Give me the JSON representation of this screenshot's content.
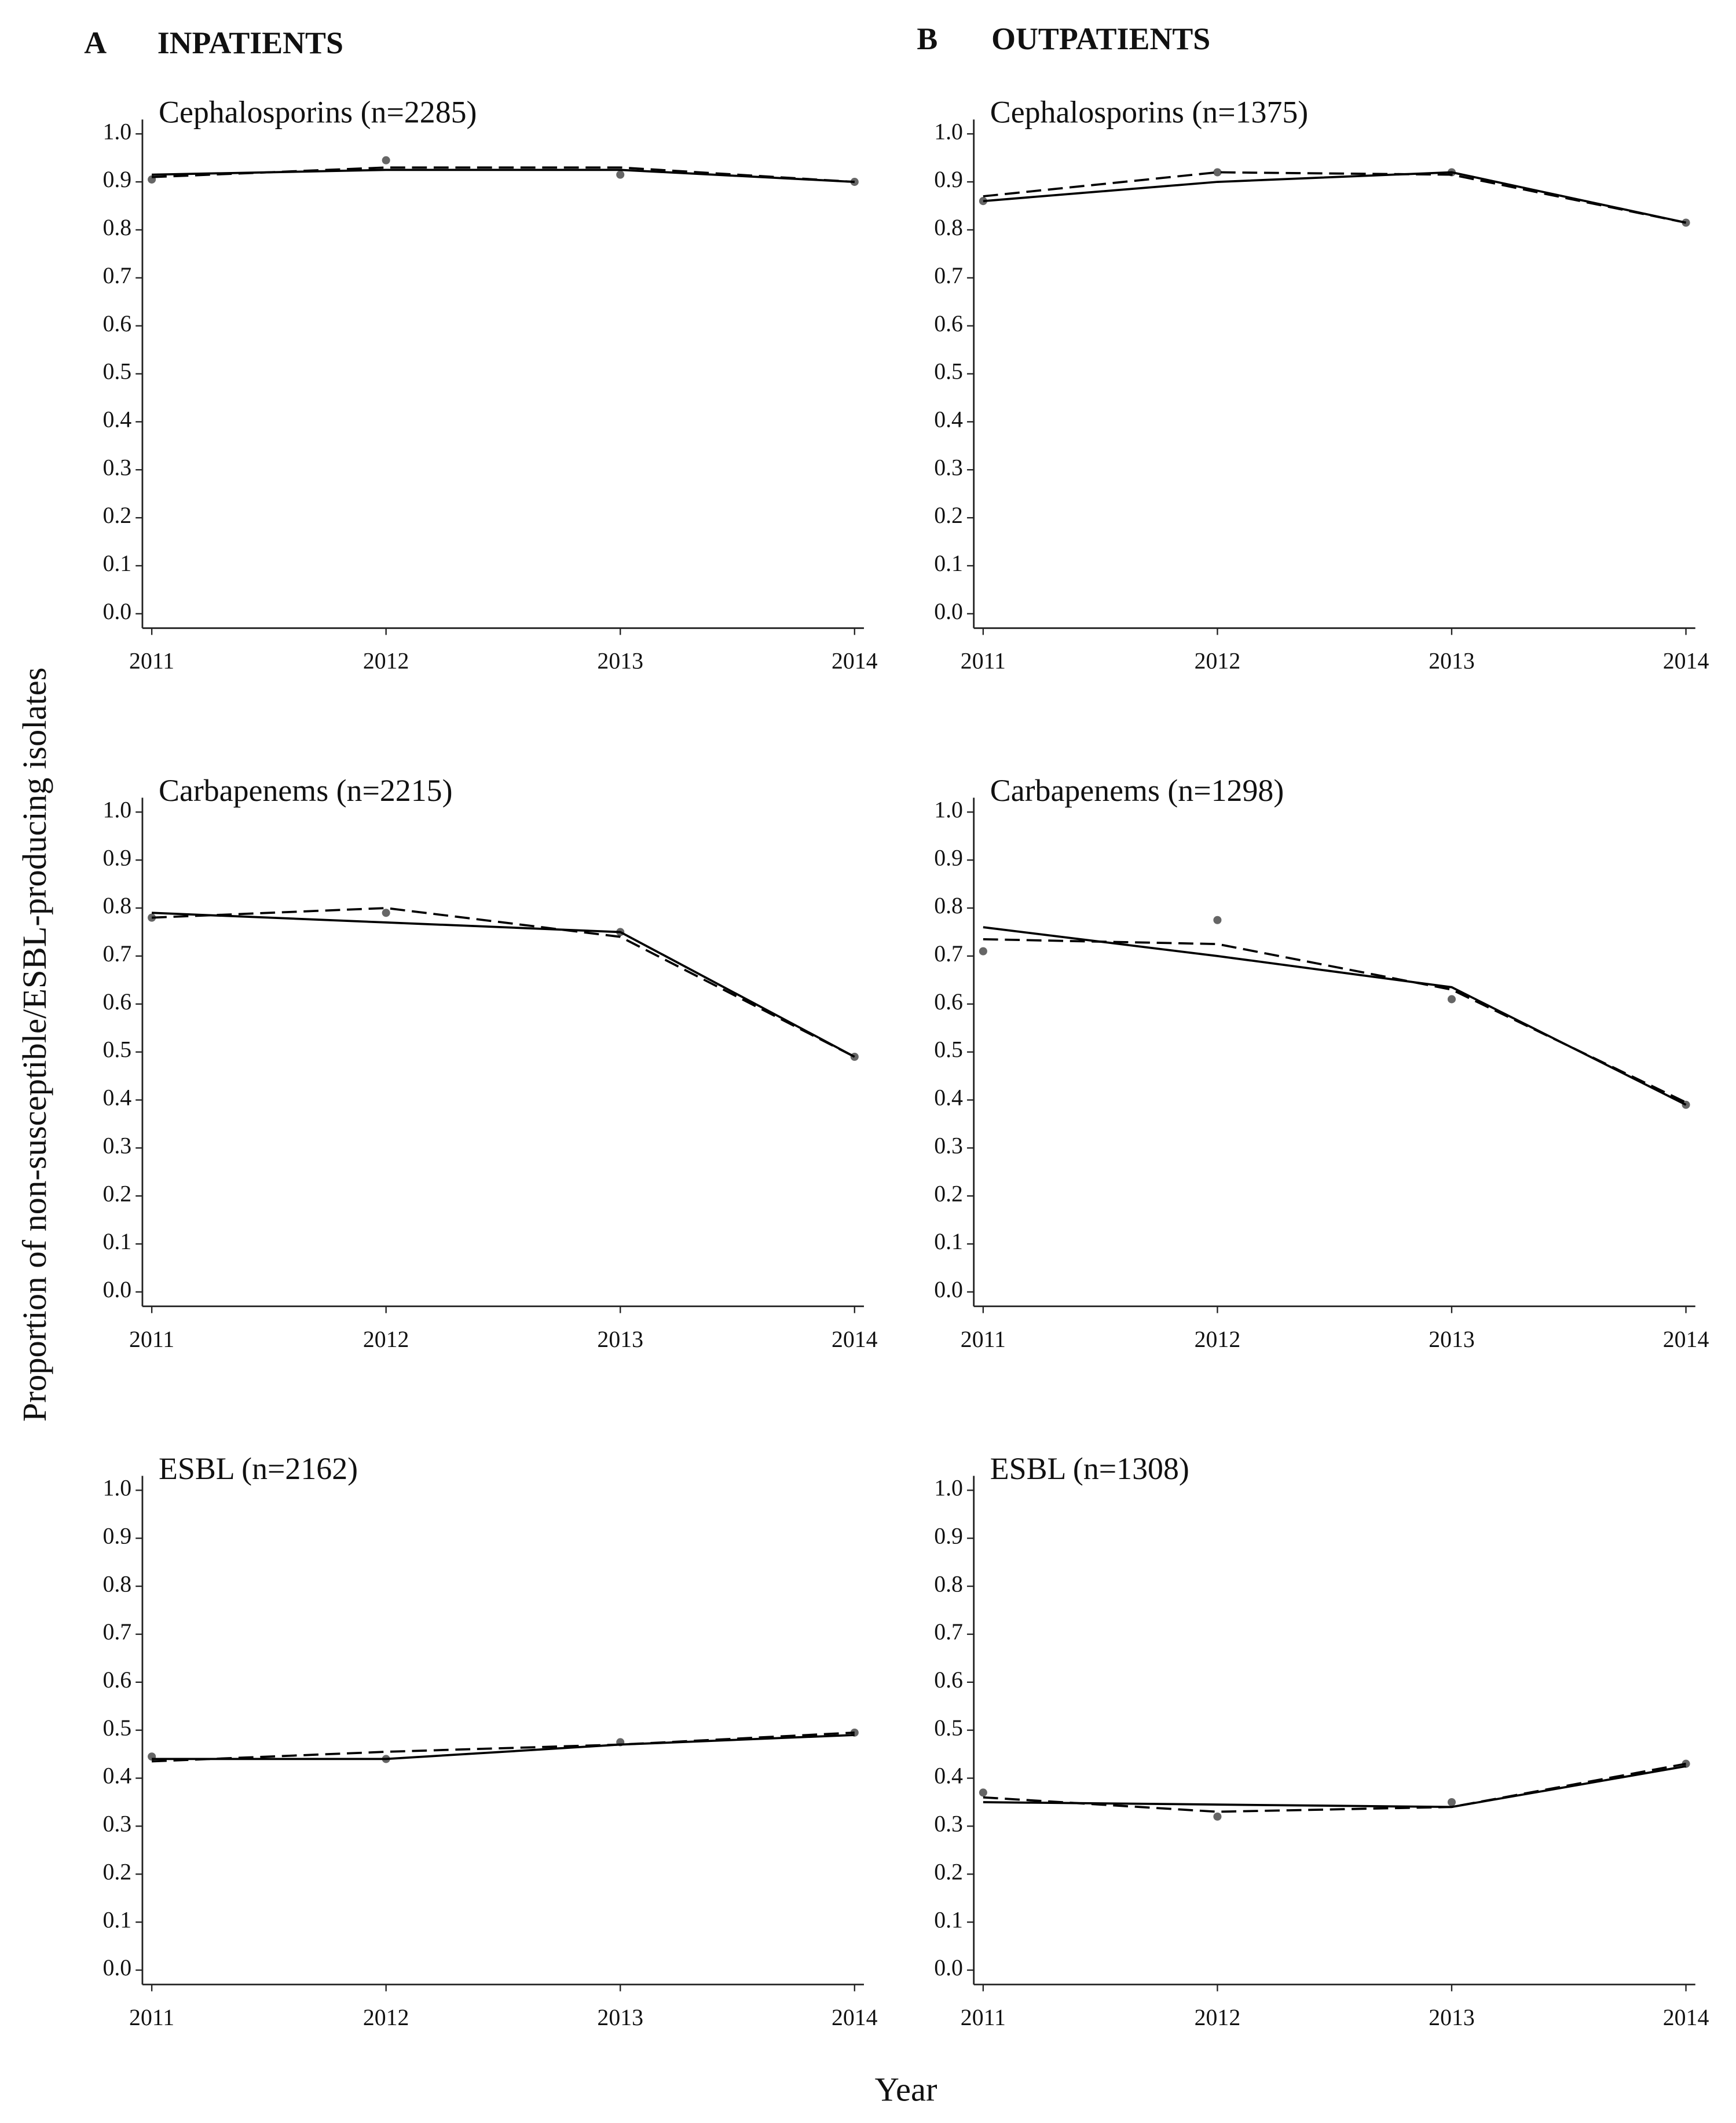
{
  "headers": [
    {
      "letter": "A",
      "text": "INPATIENTS"
    },
    {
      "letter": "B",
      "text": "OUTPATIENTS"
    }
  ],
  "ylabel": "Proportion of non-susceptible/ESBL-producing isolates",
  "xlabel": "Year",
  "chart_data": [
    {
      "type": "line",
      "title": "Cephalosporins (n=2285)",
      "x": [
        2011,
        2012,
        2013,
        2014
      ],
      "series": [
        {
          "style": "points",
          "color": "#666666",
          "values": [
            0.905,
            0.945,
            0.915,
            0.9
          ]
        },
        {
          "style": "solid",
          "color": "#000000",
          "values": [
            0.915,
            0.925,
            0.925,
            0.9
          ]
        },
        {
          "style": "dashed",
          "color": "#000000",
          "values": [
            0.91,
            0.93,
            0.93,
            0.9
          ]
        }
      ],
      "xlim": [
        2010.96,
        2014.04
      ],
      "ylim": [
        -0.03,
        1.03
      ],
      "xticks": [
        2011,
        2012,
        2013,
        2014
      ],
      "yticks": [
        {
          "value": 0,
          "label": "0.0"
        },
        0.1,
        0.2,
        0.3,
        0.4,
        0.5,
        0.6,
        0.7,
        0.8,
        0.9,
        {
          "value": 1,
          "label": "1.0"
        }
      ]
    },
    {
      "type": "line",
      "title": "Carbapenems (n=2215)",
      "x": [
        2011,
        2012,
        2013,
        2014
      ],
      "series": [
        {
          "style": "points",
          "color": "#666666",
          "values": [
            0.78,
            0.79,
            0.75,
            0.49
          ]
        },
        {
          "style": "solid",
          "color": "#000000",
          "values": [
            0.79,
            0.77,
            0.75,
            0.49
          ]
        },
        {
          "style": "dashed",
          "color": "#000000",
          "values": [
            0.78,
            0.8,
            0.74,
            0.49
          ]
        }
      ],
      "xlim": [
        2010.96,
        2014.04
      ],
      "ylim": [
        -0.03,
        1.03
      ],
      "xticks": [
        2011,
        2012,
        2013,
        2014
      ],
      "yticks": [
        {
          "value": 0,
          "label": "0.0"
        },
        0.1,
        0.2,
        0.3,
        0.4,
        0.5,
        0.6,
        0.7,
        0.8,
        0.9,
        {
          "value": 1,
          "label": "1.0"
        }
      ]
    },
    {
      "type": "line",
      "title": "ESBL (n=2162)",
      "x": [
        2011,
        2012,
        2013,
        2014
      ],
      "series": [
        {
          "style": "points",
          "color": "#666666",
          "values": [
            0.445,
            0.44,
            0.475,
            0.495
          ]
        },
        {
          "style": "solid",
          "color": "#000000",
          "values": [
            0.44,
            0.44,
            0.47,
            0.49
          ]
        },
        {
          "style": "dashed",
          "color": "#000000",
          "values": [
            0.435,
            0.455,
            0.47,
            0.495
          ]
        }
      ],
      "xlim": [
        2010.96,
        2014.04
      ],
      "ylim": [
        -0.03,
        1.03
      ],
      "xticks": [
        2011,
        2012,
        2013,
        2014
      ],
      "yticks": [
        {
          "value": 0,
          "label": "0.0"
        },
        0.1,
        0.2,
        0.3,
        0.4,
        0.5,
        0.6,
        0.7,
        0.8,
        0.9,
        {
          "value": 1,
          "label": "1.0"
        }
      ]
    },
    {
      "type": "line",
      "title": "Cephalosporins (n=1375)",
      "x": [
        2011,
        2012,
        2013,
        2014
      ],
      "series": [
        {
          "style": "points",
          "color": "#666666",
          "values": [
            0.86,
            0.92,
            0.92,
            0.815
          ]
        },
        {
          "style": "solid",
          "color": "#000000",
          "values": [
            0.86,
            0.9,
            0.92,
            0.815
          ]
        },
        {
          "style": "dashed",
          "color": "#000000",
          "values": [
            0.87,
            0.92,
            0.915,
            0.815
          ]
        }
      ],
      "xlim": [
        2010.96,
        2014.04
      ],
      "ylim": [
        -0.03,
        1.03
      ],
      "xticks": [
        2011,
        2012,
        2013,
        2014
      ],
      "yticks": [
        {
          "value": 0,
          "label": "0.0"
        },
        0.1,
        0.2,
        0.3,
        0.4,
        0.5,
        0.6,
        0.7,
        0.8,
        0.9,
        {
          "value": 1,
          "label": "1.0"
        }
      ]
    },
    {
      "type": "line",
      "title": "Carbapenems (n=1298)",
      "x": [
        2011,
        2012,
        2013,
        2014
      ],
      "series": [
        {
          "style": "points",
          "color": "#666666",
          "values": [
            0.71,
            0.775,
            0.61,
            0.39
          ]
        },
        {
          "style": "solid",
          "color": "#000000",
          "values": [
            0.76,
            0.7,
            0.635,
            0.39
          ]
        },
        {
          "style": "dashed",
          "color": "#000000",
          "values": [
            0.735,
            0.725,
            0.63,
            0.395
          ]
        }
      ],
      "xlim": [
        2010.96,
        2014.04
      ],
      "ylim": [
        -0.03,
        1.03
      ],
      "xticks": [
        2011,
        2012,
        2013,
        2014
      ],
      "yticks": [
        {
          "value": 0,
          "label": "0.0"
        },
        0.1,
        0.2,
        0.3,
        0.4,
        0.5,
        0.6,
        0.7,
        0.8,
        0.9,
        {
          "value": 1,
          "label": "1.0"
        }
      ]
    },
    {
      "type": "line",
      "title": "ESBL (n=1308)",
      "x": [
        2011,
        2012,
        2013,
        2014
      ],
      "series": [
        {
          "style": "points",
          "color": "#666666",
          "values": [
            0.37,
            0.32,
            0.35,
            0.43
          ]
        },
        {
          "style": "solid",
          "color": "#000000",
          "values": [
            0.35,
            0.345,
            0.34,
            0.425
          ]
        },
        {
          "style": "dashed",
          "color": "#000000",
          "values": [
            0.36,
            0.33,
            0.34,
            0.43
          ]
        }
      ],
      "xlim": [
        2010.96,
        2014.04
      ],
      "ylim": [
        -0.03,
        1.03
      ],
      "xticks": [
        2011,
        2012,
        2013,
        2014
      ],
      "yticks": [
        {
          "value": 0,
          "label": "0.0"
        },
        0.1,
        0.2,
        0.3,
        0.4,
        0.5,
        0.6,
        0.7,
        0.8,
        0.9,
        {
          "value": 1,
          "label": "1.0"
        }
      ]
    }
  ]
}
